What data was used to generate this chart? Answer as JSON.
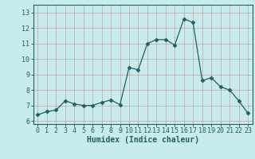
{
  "x": [
    0,
    1,
    2,
    3,
    4,
    5,
    6,
    7,
    8,
    9,
    10,
    11,
    12,
    13,
    14,
    15,
    16,
    17,
    18,
    19,
    20,
    21,
    22,
    23
  ],
  "y": [
    6.4,
    6.6,
    6.7,
    7.3,
    7.1,
    7.0,
    7.0,
    7.2,
    7.35,
    7.05,
    9.45,
    9.3,
    11.0,
    11.25,
    11.25,
    10.9,
    12.6,
    12.35,
    8.6,
    8.8,
    8.2,
    8.0,
    7.3,
    6.5
  ],
  "line_color": "#206060",
  "marker": "D",
  "marker_size": 2.5,
  "bg_color": "#c8ecec",
  "grid_color": "#c8a0a0",
  "xlabel": "Humidex (Indice chaleur)",
  "xlim": [
    -0.5,
    23.5
  ],
  "ylim": [
    5.8,
    13.5
  ],
  "yticks": [
    6,
    7,
    8,
    9,
    10,
    11,
    12,
    13
  ],
  "xticks": [
    0,
    1,
    2,
    3,
    4,
    5,
    6,
    7,
    8,
    9,
    10,
    11,
    12,
    13,
    14,
    15,
    16,
    17,
    18,
    19,
    20,
    21,
    22,
    23
  ],
  "tick_fontsize": 6.0,
  "label_fontsize": 7.0,
  "spine_color": "#206060",
  "axis_bg": "#c8ecec"
}
